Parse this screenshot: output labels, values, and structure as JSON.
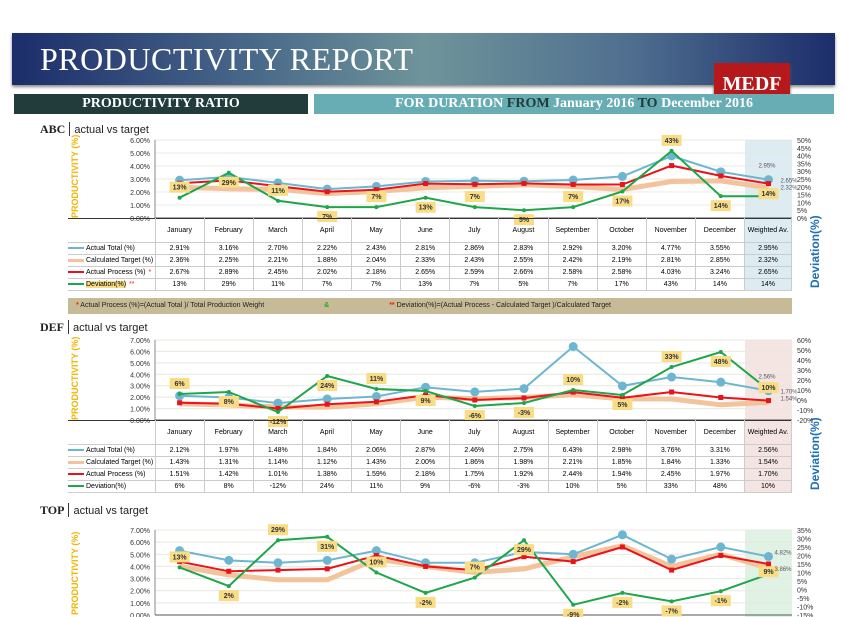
{
  "header": {
    "title": "PRODUCTIVITY REPORT",
    "logo": "MEDF"
  },
  "subheader": {
    "left": "PRODUCTIVITY RATIO",
    "dur1": "FOR DURATION ",
    "from": "FROM",
    "start": " January 2016 ",
    "to": "TO",
    "end": " December 2016"
  },
  "axis": {
    "left": "PRODUCTIVITY (%)",
    "right": "Deviation(%)"
  },
  "note": {
    "star1": "*",
    "text1": "Actual Process (%)=(Actual Total )/ Total Production Weight",
    "amp": "&",
    "star2": "**",
    "text2": "Deviation(%)=(Actual Process - Calculated Target )/Calculated Target"
  },
  "colors": {
    "actual": "#6cb6d2",
    "target": "#f3c39c",
    "process": "#e8141a",
    "deviation": "#1fa54a",
    "label_bg": "#f8dc86"
  },
  "columns": [
    "January",
    "February",
    "March",
    "April",
    "May",
    "June",
    "July",
    "August",
    "September",
    "October",
    "November",
    "December",
    "Weighted Av."
  ],
  "sections": [
    {
      "name": "ABC",
      "subtitle": "actual vs target",
      "ylim": [
        0,
        6
      ],
      "yticks": [
        "0.00%",
        "1.00%",
        "2.00%",
        "3.00%",
        "4.00%",
        "5.00%",
        "6.00%"
      ],
      "rlim": [
        0,
        50
      ],
      "rticks": [
        "0%",
        "5%",
        "10%",
        "15%",
        "20%",
        "25%",
        "30%",
        "35%",
        "40%",
        "45%",
        "50%"
      ],
      "weighted_bg": "#dcecf2",
      "rows": [
        {
          "label": "Actual Total (%)",
          "values": [
            "2.91%",
            "3.16%",
            "2.70%",
            "2.22%",
            "2.43%",
            "2.81%",
            "2.86%",
            "2.83%",
            "2.92%",
            "3.20%",
            "4.77%",
            "3.55%",
            "2.95%"
          ]
        },
        {
          "label": "Calculated Target (%)",
          "values": [
            "2.36%",
            "2.25%",
            "2.21%",
            "1.88%",
            "2.04%",
            "2.33%",
            "2.43%",
            "2.55%",
            "2.42%",
            "2.19%",
            "2.81%",
            "2.85%",
            "2.32%"
          ]
        },
        {
          "label": "Actual Process (%)",
          "mark": "*",
          "values": [
            "2.67%",
            "2.89%",
            "2.45%",
            "2.02%",
            "2.18%",
            "2.65%",
            "2.59%",
            "2.66%",
            "2.58%",
            "2.58%",
            "4.03%",
            "3.24%",
            "2.65%"
          ]
        },
        {
          "label": "Deviation(%)",
          "mark": "**",
          "values": [
            "13%",
            "29%",
            "11%",
            "7%",
            "7%",
            "13%",
            "7%",
            "5%",
            "7%",
            "17%",
            "43%",
            "14%",
            "14%"
          ]
        }
      ]
    },
    {
      "name": "DEF",
      "subtitle": "actual vs target",
      "ylim": [
        0,
        7
      ],
      "yticks": [
        "0.00%",
        "1.00%",
        "2.00%",
        "3.00%",
        "4.00%",
        "5.00%",
        "6.00%",
        "7.00%"
      ],
      "rlim": [
        -20,
        60
      ],
      "rticks": [
        "-20%",
        "-10%",
        "0%",
        "10%",
        "20%",
        "30%",
        "40%",
        "50%",
        "60%"
      ],
      "weighted_bg": "#f4e4e2",
      "rows": [
        {
          "label": "Actual Total (%)",
          "values": [
            "2.12%",
            "1.97%",
            "1.48%",
            "1.84%",
            "2.06%",
            "2.87%",
            "2.46%",
            "2.75%",
            "6.43%",
            "2.98%",
            "3.76%",
            "3.31%",
            "2.56%"
          ]
        },
        {
          "label": "Calculated Target (%)",
          "values": [
            "1.43%",
            "1.31%",
            "1.14%",
            "1.12%",
            "1.43%",
            "2.00%",
            "1.86%",
            "1.98%",
            "2.21%",
            "1.85%",
            "1.84%",
            "1.33%",
            "1.54%"
          ]
        },
        {
          "label": "Actual Process (%)",
          "values": [
            "1.51%",
            "1.42%",
            "1.01%",
            "1.38%",
            "1.59%",
            "2.18%",
            "1.75%",
            "1.92%",
            "2.44%",
            "1.94%",
            "2.45%",
            "1.97%",
            "1.70%"
          ]
        },
        {
          "label": "Deviation(%)",
          "values": [
            "6%",
            "8%",
            "-12%",
            "24%",
            "11%",
            "9%",
            "-6%",
            "-3%",
            "10%",
            "5%",
            "33%",
            "48%",
            "10%"
          ]
        }
      ]
    },
    {
      "name": "TOP",
      "subtitle": "actual vs target",
      "ylim": [
        0,
        7
      ],
      "yticks": [
        "0.00%",
        "1.00%",
        "2.00%",
        "3.00%",
        "4.00%",
        "5.00%",
        "6.00%",
        "7.00%"
      ],
      "rlim": [
        -15,
        35
      ],
      "rticks": [
        "-15%",
        "-10%",
        "-5%",
        "0%",
        "5%",
        "10%",
        "15%",
        "20%",
        "25%",
        "30%",
        "35%"
      ],
      "weighted_bg": "#dff2e4",
      "series": {
        "actual": [
          5.3,
          4.5,
          4.3,
          4.5,
          5.3,
          4.3,
          4.3,
          5.2,
          5.0,
          6.6,
          4.6,
          5.6,
          4.82
        ],
        "target": [
          4.0,
          3.3,
          2.9,
          2.9,
          4.6,
          4.0,
          3.5,
          3.8,
          4.8,
          5.7,
          4.0,
          5.0,
          3.86
        ],
        "process": [
          4.4,
          3.6,
          3.7,
          3.8,
          4.9,
          4.0,
          3.7,
          4.8,
          4.4,
          5.6,
          3.7,
          4.9,
          4.2
        ],
        "deviation": [
          13,
          2,
          29,
          31,
          10,
          -2,
          7,
          29,
          -9,
          -2,
          -7,
          -1,
          9
        ]
      },
      "weighted_labels": [
        "4.82%",
        "3.86%"
      ]
    }
  ]
}
